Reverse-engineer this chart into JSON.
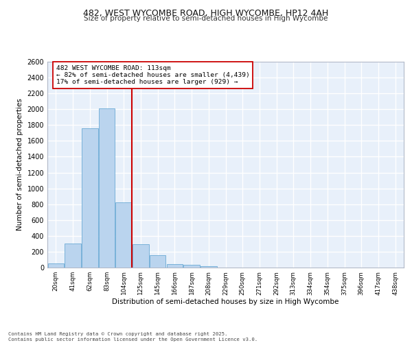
{
  "title1": "482, WEST WYCOMBE ROAD, HIGH WYCOMBE, HP12 4AH",
  "title2": "Size of property relative to semi-detached houses in High Wycombe",
  "xlabel": "Distribution of semi-detached houses by size in High Wycombe",
  "ylabel": "Number of semi-detached properties",
  "categories": [
    "20sqm",
    "41sqm",
    "62sqm",
    "83sqm",
    "104sqm",
    "125sqm",
    "145sqm",
    "166sqm",
    "187sqm",
    "208sqm",
    "229sqm",
    "250sqm",
    "271sqm",
    "292sqm",
    "313sqm",
    "334sqm",
    "354sqm",
    "375sqm",
    "396sqm",
    "417sqm",
    "438sqm"
  ],
  "values": [
    55,
    300,
    1760,
    2010,
    820,
    295,
    155,
    40,
    35,
    20,
    0,
    0,
    0,
    0,
    0,
    0,
    0,
    0,
    0,
    0,
    0
  ],
  "bar_color": "#bad4ee",
  "bar_edge_color": "#6aaad4",
  "vline_color": "#cc0000",
  "annotation_text": "482 WEST WYCOMBE ROAD: 113sqm\n← 82% of semi-detached houses are smaller (4,439)\n17% of semi-detached houses are larger (929) →",
  "annotation_box_color": "#ffffff",
  "annotation_border_color": "#cc0000",
  "footer_text": "Contains HM Land Registry data © Crown copyright and database right 2025.\nContains public sector information licensed under the Open Government Licence v3.0.",
  "background_color": "#e8f0fa",
  "grid_color": "#ffffff",
  "ylim": [
    0,
    2600
  ],
  "yticks": [
    0,
    200,
    400,
    600,
    800,
    1000,
    1200,
    1400,
    1600,
    1800,
    2000,
    2200,
    2400,
    2600
  ]
}
